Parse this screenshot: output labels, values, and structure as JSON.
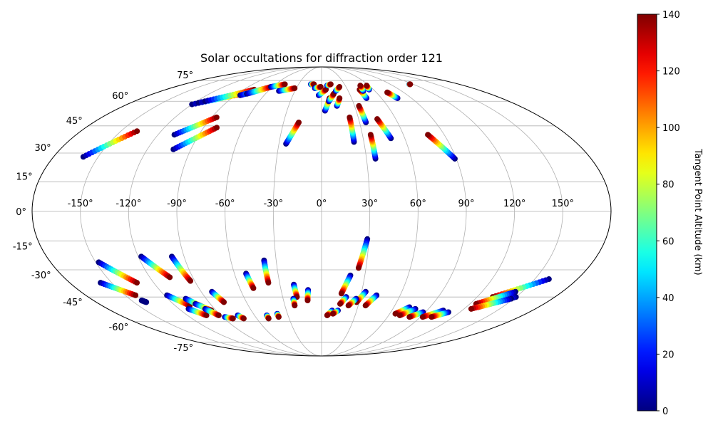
{
  "chart_data": {
    "type": "scatter",
    "projection": "mollweide",
    "title": "Solar occultations for diffraction order 121",
    "xlabel": "",
    "ylabel": "",
    "grid": true,
    "longitude_ticks": [
      -150,
      -120,
      -90,
      -60,
      -30,
      0,
      30,
      60,
      90,
      120,
      150
    ],
    "longitude_tick_labels": [
      "-150°",
      "-120°",
      "-90°",
      "-60°",
      "-30°",
      "0°",
      "30°",
      "60°",
      "90°",
      "120°",
      "150°"
    ],
    "latitude_ticks": [
      75,
      60,
      45,
      30,
      15,
      0,
      -15,
      -30,
      -45,
      -60,
      -75
    ],
    "latitude_tick_labels": [
      "75°",
      "60°",
      "45°",
      "30°",
      "15°",
      "0°",
      "-15°",
      "-30°",
      "-45°",
      "-60°",
      "-75°"
    ],
    "colorbar": {
      "label": "Tangent Point Altitude (km)",
      "colormap": "jet",
      "range": [
        0,
        140
      ],
      "ticks": [
        0,
        20,
        40,
        60,
        80,
        100,
        120,
        140
      ],
      "tick_labels": [
        "0",
        "20",
        "40",
        "60",
        "80",
        "100",
        "120",
        "140"
      ]
    },
    "occultation_tracks": [
      {
        "start": [
          -160,
          28
        ],
        "end": [
          -138,
          42
        ],
        "alt_start": 0,
        "alt_end": 140
      },
      {
        "start": [
          -120,
          58
        ],
        "end": [
          -80,
          66
        ],
        "alt_start": 0,
        "alt_end": 140
      },
      {
        "start": [
          -116,
          59
        ],
        "end": [
          -79,
          67
        ],
        "alt_start": 0,
        "alt_end": 140
      },
      {
        "start": [
          -112,
          60
        ],
        "end": [
          -78,
          68
        ],
        "alt_start": 0,
        "alt_end": 140
      },
      {
        "start": [
          -85,
          64
        ],
        "end": [
          -66,
          69
        ],
        "alt_start": 0,
        "alt_end": 140
      },
      {
        "start": [
          -80,
          65
        ],
        "end": [
          -62,
          70
        ],
        "alt_start": 0,
        "alt_end": 140
      },
      {
        "start": [
          -62,
          70
        ],
        "end": [
          -48,
          72
        ],
        "alt_start": 0,
        "alt_end": 140
      },
      {
        "start": [
          -48,
          67
        ],
        "end": [
          -32,
          69
        ],
        "alt_start": 0,
        "alt_end": 140
      },
      {
        "start": [
          -108,
          40
        ],
        "end": [
          -86,
          50
        ],
        "alt_start": 0,
        "alt_end": 140
      },
      {
        "start": [
          -102,
          32
        ],
        "end": [
          -80,
          44
        ],
        "alt_start": 0,
        "alt_end": 140
      },
      {
        "start": [
          -25,
          35
        ],
        "end": [
          -18,
          47
        ],
        "alt_start": 0,
        "alt_end": 140
      },
      {
        "start": [
          -14,
          72
        ],
        "end": [
          -10,
          72
        ],
        "alt_start": 0,
        "alt_end": 140
      },
      {
        "start": [
          -8,
          69
        ],
        "end": [
          -1,
          70
        ],
        "alt_start": 0,
        "alt_end": 140
      },
      {
        "start": [
          -3,
          64
        ],
        "end": [
          5,
          68
        ],
        "alt_start": 0,
        "alt_end": 140
      },
      {
        "start": [
          3,
          54
        ],
        "end": [
          8,
          62
        ],
        "alt_start": 0,
        "alt_end": 140
      },
      {
        "start": [
          7,
          60
        ],
        "end": [
          13,
          65
        ],
        "alt_start": 0,
        "alt_end": 140
      },
      {
        "start": [
          7,
          71
        ],
        "end": [
          12,
          72
        ],
        "alt_start": 0,
        "alt_end": 140
      },
      {
        "start": [
          14,
          57
        ],
        "end": [
          18,
          62
        ],
        "alt_start": 0,
        "alt_end": 140
      },
      {
        "start": [
          16,
          67
        ],
        "end": [
          22,
          70
        ],
        "alt_start": 0,
        "alt_end": 140
      },
      {
        "start": [
          23,
          36
        ],
        "end": [
          23,
          50
        ],
        "alt_start": 0,
        "alt_end": 140
      },
      {
        "start": [
          36,
          27
        ],
        "end": [
          36,
          40
        ],
        "alt_start": 0,
        "alt_end": 140
      },
      {
        "start": [
          35,
          47
        ],
        "end": [
          34,
          57
        ],
        "alt_start": 0,
        "alt_end": 140
      },
      {
        "start": [
          45,
          62
        ],
        "end": [
          44,
          68
        ],
        "alt_start": 0,
        "alt_end": 140
      },
      {
        "start": [
          47,
          67
        ],
        "end": [
          49,
          71
        ],
        "alt_start": 0,
        "alt_end": 140
      },
      {
        "start": [
          55,
          68
        ],
        "end": [
          57,
          71
        ],
        "alt_start": 0,
        "alt_end": 140
      },
      {
        "start": [
          50,
          38
        ],
        "end": [
          45,
          49
        ],
        "alt_start": 0,
        "alt_end": 140
      },
      {
        "start": [
          76,
          62
        ],
        "end": [
          72,
          66
        ],
        "alt_start": 0,
        "alt_end": 140
      },
      {
        "start": [
          89,
          27
        ],
        "end": [
          78,
          40
        ],
        "alt_start": 0,
        "alt_end": 140
      },
      {
        "start": [
          115,
          72
        ],
        "end": [
          116,
          72
        ],
        "alt_start": 0,
        "alt_end": 140
      },
      {
        "start": [
          -148,
          -26
        ],
        "end": [
          -132,
          -37
        ],
        "alt_start": 0,
        "alt_end": 140
      },
      {
        "start": [
          -158,
          -37
        ],
        "end": [
          -142,
          -44
        ],
        "alt_start": 0,
        "alt_end": 140
      },
      {
        "start": [
          -142,
          -47
        ],
        "end": [
          -140,
          -48
        ],
        "alt_start": 0,
        "alt_end": 0
      },
      {
        "start": [
          -118,
          -23
        ],
        "end": [
          -106,
          -34
        ],
        "alt_start": 0,
        "alt_end": 140
      },
      {
        "start": [
          -98,
          -23
        ],
        "end": [
          -93,
          -36
        ],
        "alt_start": 0,
        "alt_end": 140
      },
      {
        "start": [
          -82,
          -42
        ],
        "end": [
          -78,
          -48
        ],
        "alt_start": 0,
        "alt_end": 140
      },
      {
        "start": [
          -52,
          -32
        ],
        "end": [
          -50,
          -40
        ],
        "alt_start": 0,
        "alt_end": 140
      },
      {
        "start": [
          -38,
          -25
        ],
        "end": [
          -38,
          -37
        ],
        "alt_start": 0,
        "alt_end": 140
      },
      {
        "start": [
          -118,
          -44
        ],
        "end": [
          -108,
          -50
        ],
        "alt_start": 0,
        "alt_end": 140
      },
      {
        "start": [
          -106,
          -46
        ],
        "end": [
          -98,
          -51
        ],
        "alt_start": 0,
        "alt_end": 140
      },
      {
        "start": [
          -102,
          -49
        ],
        "end": [
          -94,
          -53
        ],
        "alt_start": 0,
        "alt_end": 140
      },
      {
        "start": [
          -112,
          -52
        ],
        "end": [
          -103,
          -56
        ],
        "alt_start": 0,
        "alt_end": 140
      },
      {
        "start": [
          -98,
          -52
        ],
        "end": [
          -92,
          -56
        ],
        "alt_start": 0,
        "alt_end": 140
      },
      {
        "start": [
          -88,
          -57
        ],
        "end": [
          -82,
          -58
        ],
        "alt_start": 0,
        "alt_end": 140
      },
      {
        "start": [
          -75,
          -56
        ],
        "end": [
          -72,
          -58
        ],
        "alt_start": 0,
        "alt_end": 140
      },
      {
        "start": [
          -49,
          -56
        ],
        "end": [
          -49,
          -58
        ],
        "alt_start": 0,
        "alt_end": 140
      },
      {
        "start": [
          -39,
          -55
        ],
        "end": [
          -39,
          -57
        ],
        "alt_start": 0,
        "alt_end": 140
      },
      {
        "start": [
          -20,
          -38
        ],
        "end": [
          -19,
          -45
        ],
        "alt_start": 0,
        "alt_end": 140
      },
      {
        "start": [
          -22,
          -46
        ],
        "end": [
          -22,
          -50
        ],
        "alt_start": 0,
        "alt_end": 140
      },
      {
        "start": [
          -10,
          -41
        ],
        "end": [
          -11,
          -47
        ],
        "alt_start": 0,
        "alt_end": 140
      },
      {
        "start": [
          29,
          -14
        ],
        "end": [
          25,
          -29
        ],
        "alt_start": 0,
        "alt_end": 140
      },
      {
        "start": [
          20,
          -33
        ],
        "end": [
          15,
          -43
        ],
        "alt_start": 0,
        "alt_end": 140
      },
      {
        "start": [
          19,
          -45
        ],
        "end": [
          15,
          -49
        ],
        "alt_start": 0,
        "alt_end": 140
      },
      {
        "start": [
          33,
          -42
        ],
        "end": [
          28,
          -48
        ],
        "alt_start": 0,
        "alt_end": 140
      },
      {
        "start": [
          27,
          -46
        ],
        "end": [
          22,
          -50
        ],
        "alt_start": 0,
        "alt_end": 140
      },
      {
        "start": [
          42,
          -44
        ],
        "end": [
          36,
          -50
        ],
        "alt_start": 0,
        "alt_end": 140
      },
      {
        "start": [
          9,
          -53
        ],
        "end": [
          5,
          -56
        ],
        "alt_start": 0,
        "alt_end": 140
      },
      {
        "start": [
          14,
          -53
        ],
        "end": [
          10,
          -55
        ],
        "alt_start": 0,
        "alt_end": 140
      },
      {
        "start": [
          73,
          -51
        ],
        "end": [
          65,
          -55
        ],
        "alt_start": 0,
        "alt_end": 140
      },
      {
        "start": [
          79,
          -52
        ],
        "end": [
          70,
          -56
        ],
        "alt_start": 0,
        "alt_end": 140
      },
      {
        "start": [
          88,
          -54
        ],
        "end": [
          80,
          -57
        ],
        "alt_start": 0,
        "alt_end": 140
      },
      {
        "start": [
          104,
          -53
        ],
        "end": [
          92,
          -57
        ],
        "alt_start": 0,
        "alt_end": 140
      },
      {
        "start": [
          110,
          -54
        ],
        "end": [
          100,
          -57
        ],
        "alt_start": 0,
        "alt_end": 140
      },
      {
        "start": [
          160,
          -35
        ],
        "end": [
          132,
          -45
        ],
        "alt_start": 0,
        "alt_end": 140
      },
      {
        "start": [
          145,
          -42
        ],
        "end": [
          125,
          -49
        ],
        "alt_start": 0,
        "alt_end": 140
      },
      {
        "start": [
          150,
          -45
        ],
        "end": [
          130,
          -51
        ],
        "alt_start": 0,
        "alt_end": 140
      },
      {
        "start": [
          148,
          -46
        ],
        "end": [
          126,
          -52
        ],
        "alt_start": 0,
        "alt_end": 140
      }
    ]
  }
}
